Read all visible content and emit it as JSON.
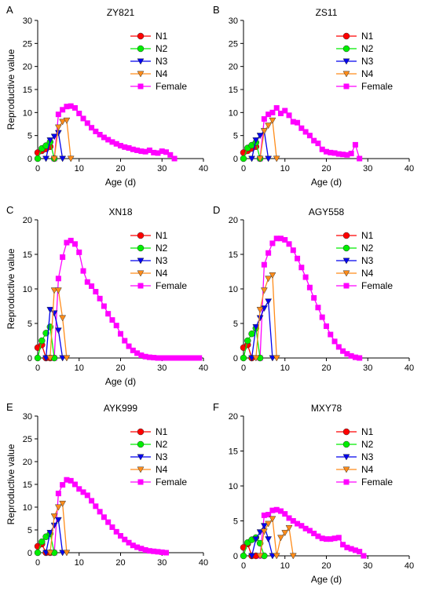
{
  "figure": {
    "colors": {
      "N1": "#ff0000",
      "N2": "#00ee00",
      "N3": "#0000ee",
      "N4": "#ff8c1a",
      "Female": "#ff00ff"
    },
    "markers": {
      "N1": "circle",
      "N2": "circle",
      "N3": "triangle-down",
      "N4": "triangle-down",
      "Female": "square"
    }
  },
  "chart_data": [
    {
      "type": "line",
      "panel": "A",
      "title": "ZY821",
      "xlabel": "Age (d)",
      "ylabel": "Reproductive value",
      "xlim": [
        0,
        40
      ],
      "ylim": [
        0,
        30
      ],
      "xticks": [
        0,
        10,
        20,
        30,
        40
      ],
      "yticks": [
        0,
        5,
        10,
        15,
        20,
        25,
        30
      ],
      "legend": "top-right",
      "series": [
        {
          "name": "N1",
          "x": [
            0,
            1,
            2,
            3
          ],
          "y": [
            1.3,
            1.7,
            2.1,
            2.6
          ]
        },
        {
          "name": "N2",
          "x": [
            0,
            1,
            2,
            3,
            4
          ],
          "y": [
            0.0,
            2.2,
            2.8,
            3.6,
            0.0
          ]
        },
        {
          "name": "N3",
          "x": [
            2,
            3,
            4,
            5,
            6
          ],
          "y": [
            0.0,
            4.0,
            4.8,
            5.6,
            0.0
          ]
        },
        {
          "name": "N4",
          "x": [
            4,
            5,
            6,
            7,
            8
          ],
          "y": [
            0.0,
            6.8,
            8.0,
            8.3,
            0.0
          ]
        },
        {
          "name": "Female",
          "x": [
            4,
            5,
            6,
            7,
            8,
            9,
            10,
            11,
            12,
            13,
            14,
            15,
            16,
            17,
            18,
            19,
            20,
            21,
            22,
            23,
            24,
            25,
            26,
            27,
            28,
            29,
            30,
            31,
            32,
            33
          ],
          "y": [
            0.0,
            9.6,
            10.6,
            11.3,
            11.4,
            11.0,
            9.8,
            8.7,
            7.7,
            6.7,
            5.9,
            5.2,
            4.6,
            4.1,
            3.6,
            3.2,
            2.8,
            2.5,
            2.3,
            2.0,
            1.8,
            1.6,
            1.5,
            1.8,
            1.3,
            1.2,
            1.6,
            1.4,
            0.8,
            0.0
          ]
        }
      ]
    },
    {
      "type": "line",
      "panel": "B",
      "title": "ZS11",
      "xlabel": "Age (d)",
      "ylabel": "",
      "xlim": [
        0,
        40
      ],
      "ylim": [
        0,
        30
      ],
      "xticks": [
        0,
        10,
        20,
        30,
        40
      ],
      "yticks": [
        0,
        5,
        10,
        15,
        20,
        25,
        30
      ],
      "legend": "top-right",
      "series": [
        {
          "name": "N1",
          "x": [
            0,
            1,
            2,
            3
          ],
          "y": [
            1.3,
            1.7,
            2.2,
            2.6
          ]
        },
        {
          "name": "N2",
          "x": [
            0,
            1,
            2,
            3,
            4
          ],
          "y": [
            0.0,
            2.3,
            2.9,
            3.5,
            0.0
          ]
        },
        {
          "name": "N3",
          "x": [
            2,
            3,
            4,
            5,
            6
          ],
          "y": [
            0.0,
            4.0,
            5.0,
            6.0,
            0.0
          ]
        },
        {
          "name": "N4",
          "x": [
            4,
            5,
            6,
            7,
            8
          ],
          "y": [
            0.0,
            6.0,
            7.2,
            8.3,
            0.0
          ]
        },
        {
          "name": "Female",
          "x": [
            4,
            5,
            6,
            7,
            8,
            9,
            10,
            11,
            12,
            13,
            14,
            15,
            16,
            17,
            18,
            19,
            20,
            21,
            22,
            23,
            24,
            25,
            26,
            27,
            28
          ],
          "y": [
            0.0,
            8.6,
            9.6,
            10.0,
            11.0,
            9.8,
            10.4,
            9.4,
            8.0,
            7.8,
            6.6,
            5.8,
            5.0,
            3.9,
            3.3,
            2.0,
            1.5,
            1.3,
            1.2,
            1.0,
            0.9,
            0.8,
            1.1,
            3.0,
            0.0
          ]
        }
      ]
    },
    {
      "type": "line",
      "panel": "C",
      "title": "XN18",
      "xlabel": "Age (d)",
      "ylabel": "Reproductive value",
      "xlim": [
        0,
        40
      ],
      "ylim": [
        0,
        20
      ],
      "xticks": [
        0,
        10,
        20,
        30,
        40
      ],
      "yticks": [
        0,
        5,
        10,
        15,
        20
      ],
      "legend": "top-right",
      "series": [
        {
          "name": "N1",
          "x": [
            0,
            1,
            2,
            3
          ],
          "y": [
            1.5,
            1.9,
            0.0,
            0.0
          ]
        },
        {
          "name": "N2",
          "x": [
            0,
            1,
            2,
            3,
            4
          ],
          "y": [
            0.0,
            2.5,
            3.6,
            4.5,
            0.0
          ]
        },
        {
          "name": "N3",
          "x": [
            2,
            3,
            4,
            5,
            6
          ],
          "y": [
            0.0,
            7.0,
            6.5,
            4.0,
            0.0
          ]
        },
        {
          "name": "N4",
          "x": [
            3,
            4,
            5,
            6,
            7
          ],
          "y": [
            0.0,
            9.8,
            9.8,
            5.8,
            0.0
          ]
        },
        {
          "name": "Female",
          "x": [
            4,
            5,
            6,
            7,
            8,
            9,
            10,
            11,
            12,
            13,
            14,
            15,
            16,
            17,
            18,
            19,
            20,
            21,
            22,
            23,
            24,
            25,
            26,
            27,
            28,
            29,
            30,
            31,
            32,
            33,
            34,
            35,
            36,
            37,
            38,
            39
          ],
          "y": [
            0.0,
            11.5,
            14.6,
            16.7,
            17.0,
            16.5,
            15.3,
            12.6,
            11.0,
            10.4,
            9.6,
            8.6,
            7.5,
            6.4,
            5.5,
            4.7,
            3.5,
            2.5,
            1.7,
            1.1,
            0.7,
            0.4,
            0.2,
            0.1,
            0.05,
            0.0,
            0.0,
            0.0,
            0.0,
            0.0,
            0.0,
            0.0,
            0.0,
            0.0,
            0.0,
            0.0
          ]
        }
      ]
    },
    {
      "type": "line",
      "panel": "D",
      "title": "AGY558",
      "xlabel": "",
      "ylabel": "",
      "xlim": [
        0,
        40
      ],
      "ylim": [
        0,
        20
      ],
      "xticks": [
        0,
        10,
        20,
        30,
        40
      ],
      "yticks": [
        0,
        5,
        10,
        15,
        20
      ],
      "legend": "top-right",
      "series": [
        {
          "name": "N1",
          "x": [
            0,
            1,
            2
          ],
          "y": [
            1.5,
            1.9,
            0.0
          ]
        },
        {
          "name": "N2",
          "x": [
            0,
            1,
            2,
            3,
            4
          ],
          "y": [
            0.0,
            2.5,
            3.5,
            4.3,
            0.0
          ]
        },
        {
          "name": "N3",
          "x": [
            2,
            3,
            4,
            5,
            6,
            7
          ],
          "y": [
            0.0,
            4.5,
            5.8,
            7.2,
            8.2,
            0.0
          ]
        },
        {
          "name": "N4",
          "x": [
            3,
            4,
            5,
            6,
            7,
            8
          ],
          "y": [
            0.0,
            7.0,
            9.8,
            11.5,
            12.0,
            0.0
          ]
        },
        {
          "name": "Female",
          "x": [
            4,
            5,
            6,
            7,
            8,
            9,
            10,
            11,
            12,
            13,
            14,
            15,
            16,
            17,
            18,
            19,
            20,
            21,
            22,
            23,
            24,
            25,
            26,
            27,
            28
          ],
          "y": [
            0.0,
            13.5,
            15.2,
            16.6,
            17.3,
            17.3,
            17.1,
            16.5,
            15.6,
            14.4,
            13.1,
            11.7,
            10.2,
            8.7,
            7.3,
            5.9,
            4.6,
            3.4,
            2.4,
            1.6,
            1.0,
            0.6,
            0.3,
            0.1,
            0.0
          ]
        }
      ]
    },
    {
      "type": "line",
      "panel": "E",
      "title": "AYK999",
      "xlabel": "",
      "ylabel": "Reproductive value",
      "xlim": [
        0,
        40
      ],
      "ylim": [
        0,
        30
      ],
      "xticks": [
        0,
        10,
        20,
        30,
        40
      ],
      "yticks": [
        0,
        5,
        10,
        15,
        20,
        25,
        30
      ],
      "legend": "top-right",
      "series": [
        {
          "name": "N1",
          "x": [
            0,
            1,
            2,
            3
          ],
          "y": [
            1.4,
            1.9,
            0.0,
            0.0
          ]
        },
        {
          "name": "N2",
          "x": [
            0,
            1,
            2,
            3,
            4
          ],
          "y": [
            0.0,
            2.4,
            3.5,
            4.2,
            0.0
          ]
        },
        {
          "name": "N3",
          "x": [
            2,
            3,
            4,
            5,
            6
          ],
          "y": [
            0.0,
            4.4,
            6.0,
            7.2,
            0.0
          ]
        },
        {
          "name": "N4",
          "x": [
            3,
            4,
            5,
            6,
            7
          ],
          "y": [
            0.0,
            8.0,
            10.0,
            10.8,
            0.0
          ]
        },
        {
          "name": "Female",
          "x": [
            4,
            5,
            6,
            7,
            8,
            9,
            10,
            11,
            12,
            13,
            14,
            15,
            16,
            17,
            18,
            19,
            20,
            21,
            22,
            23,
            24,
            25,
            26,
            27,
            28,
            29,
            30,
            31
          ],
          "y": [
            0.0,
            13.0,
            14.9,
            16.0,
            15.8,
            15.0,
            14.0,
            13.3,
            12.6,
            11.4,
            10.2,
            9.0,
            7.8,
            6.7,
            5.6,
            4.6,
            3.7,
            2.9,
            2.2,
            1.6,
            1.2,
            0.9,
            0.6,
            0.4,
            0.3,
            0.2,
            0.1,
            0.0
          ]
        }
      ]
    },
    {
      "type": "line",
      "panel": "F",
      "title": "MXY78",
      "xlabel": "Age (d)",
      "ylabel": "",
      "xlim": [
        0,
        40
      ],
      "ylim": [
        0,
        20
      ],
      "xticks": [
        0,
        10,
        20,
        30,
        40
      ],
      "yticks": [
        0,
        5,
        10,
        15,
        20
      ],
      "legend": "top-right",
      "series": [
        {
          "name": "N1",
          "x": [
            0,
            1,
            2,
            3
          ],
          "y": [
            1.2,
            1.7,
            0.0,
            0.0
          ]
        },
        {
          "name": "N2",
          "x": [
            0,
            1,
            2,
            3,
            4,
            5
          ],
          "y": [
            0.0,
            1.9,
            2.3,
            2.6,
            1.8,
            0.0
          ]
        },
        {
          "name": "N3",
          "x": [
            2,
            3,
            4,
            5,
            6,
            7
          ],
          "y": [
            0.0,
            2.4,
            3.4,
            4.3,
            2.4,
            0.0
          ]
        },
        {
          "name": "N4",
          "x": [
            4,
            5,
            6,
            7,
            8,
            9,
            10,
            11,
            12
          ],
          "y": [
            0.0,
            3.5,
            4.6,
            5.3,
            0.0,
            2.6,
            3.3,
            4.0,
            0.0
          ]
        },
        {
          "name": "Female",
          "x": [
            4,
            5,
            6,
            7,
            8,
            9,
            10,
            11,
            12,
            13,
            14,
            15,
            16,
            17,
            18,
            19,
            20,
            21,
            22,
            23,
            24,
            25,
            26,
            27,
            28,
            29
          ],
          "y": [
            0.0,
            5.8,
            5.9,
            6.5,
            6.6,
            6.4,
            6.0,
            5.4,
            5.0,
            4.6,
            4.3,
            3.9,
            3.6,
            3.2,
            2.8,
            2.5,
            2.4,
            2.4,
            2.5,
            2.6,
            1.6,
            1.2,
            1.0,
            0.8,
            0.6,
            0.0
          ]
        }
      ]
    }
  ]
}
